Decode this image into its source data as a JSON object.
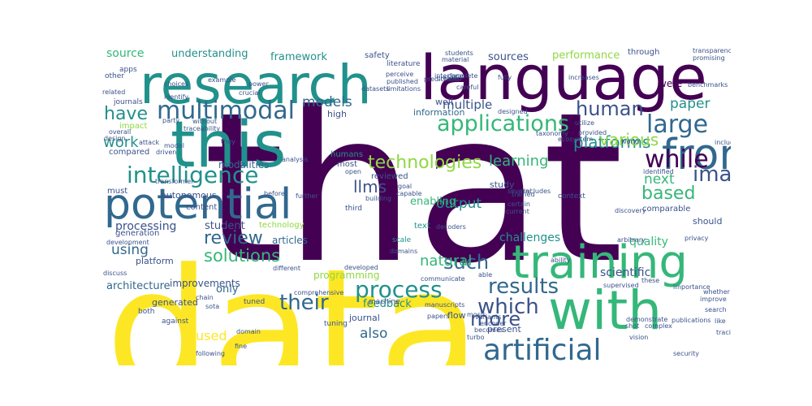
{
  "palette": {
    "dark_purple": "#440154",
    "indigo": "#3b528b",
    "slate_blue": "#31688e",
    "teal": "#21918c",
    "green": "#35b779",
    "lime": "#90d743",
    "yellow": "#fde725",
    "background": "#ffffff"
  },
  "words": [
    {
      "text": "that",
      "color": "#440154"
    },
    {
      "text": "data",
      "color": "#fde725"
    },
    {
      "text": "language",
      "color": "#440154"
    },
    {
      "text": "research",
      "color": "#21918c"
    },
    {
      "text": "this",
      "color": "#21918c"
    },
    {
      "text": "with",
      "color": "#35b779"
    },
    {
      "text": "training",
      "color": "#35b779"
    },
    {
      "text": "from",
      "color": "#31688e"
    },
    {
      "text": "potential",
      "color": "#31688e"
    },
    {
      "text": "artificial",
      "color": "#31688e"
    },
    {
      "text": "multimodal",
      "color": "#31688e"
    },
    {
      "text": "intelligence",
      "color": "#21918c"
    },
    {
      "text": "applications",
      "color": "#35b779"
    },
    {
      "text": "technologies",
      "color": "#90d743"
    },
    {
      "text": "large",
      "color": "#31688e"
    },
    {
      "text": "human",
      "color": "#3b528b"
    },
    {
      "text": "image",
      "color": "#3b528b"
    },
    {
      "text": "while",
      "color": "#440154"
    },
    {
      "text": "process",
      "color": "#21918c"
    },
    {
      "text": "results",
      "color": "#31688e"
    },
    {
      "text": "which",
      "color": "#3b528b"
    },
    {
      "text": "more",
      "color": "#3b528b"
    },
    {
      "text": "their",
      "color": "#31688e"
    },
    {
      "text": "such",
      "color": "#31688e"
    },
    {
      "text": "have",
      "color": "#21918c"
    },
    {
      "text": "review",
      "color": "#31688e"
    },
    {
      "text": "solutions",
      "color": "#35b779"
    },
    {
      "text": "platforms",
      "color": "#21918c"
    },
    {
      "text": "various",
      "color": "#90d743"
    },
    {
      "text": "based",
      "color": "#35b779"
    },
    {
      "text": "paper",
      "color": "#21918c"
    },
    {
      "text": "learning",
      "color": "#35b779"
    },
    {
      "text": "natural",
      "color": "#35b779"
    },
    {
      "text": "output",
      "color": "#21918c"
    },
    {
      "text": "models",
      "color": "#31688e"
    },
    {
      "text": "llms",
      "color": "#3b528b"
    },
    {
      "text": "next",
      "color": "#35b779"
    },
    {
      "text": "using",
      "color": "#31688e"
    },
    {
      "text": "work",
      "color": "#21918c"
    },
    {
      "text": "also",
      "color": "#31688e"
    },
    {
      "text": "used",
      "color": "#fde725"
    },
    {
      "text": "multiple",
      "color": "#3b528b"
    },
    {
      "text": "source",
      "color": "#35b779"
    },
    {
      "text": "framework",
      "color": "#21918c"
    },
    {
      "text": "understanding",
      "color": "#21918c"
    },
    {
      "text": "processing",
      "color": "#3b528b"
    },
    {
      "text": "modalities",
      "color": "#31688e"
    },
    {
      "text": "sources",
      "color": "#3b528b"
    },
    {
      "text": "performance",
      "color": "#90d743"
    },
    {
      "text": "challenges",
      "color": "#21918c"
    },
    {
      "text": "quality",
      "color": "#35b779"
    },
    {
      "text": "scientific",
      "color": "#3b528b"
    },
    {
      "text": "architecture",
      "color": "#31688e"
    },
    {
      "text": "programming",
      "color": "#90d743"
    },
    {
      "text": "enabling",
      "color": "#35b779"
    },
    {
      "text": "feedback",
      "color": "#21918c"
    },
    {
      "text": "articles",
      "color": "#31688e"
    },
    {
      "text": "student",
      "color": "#3b528b"
    },
    {
      "text": "platform",
      "color": "#3b528b"
    },
    {
      "text": "improvements",
      "color": "#3b528b"
    },
    {
      "text": "generated",
      "color": "#3b528b"
    },
    {
      "text": "only",
      "color": "#31688e"
    },
    {
      "text": "journal",
      "color": "#3b528b"
    },
    {
      "text": "present",
      "color": "#3b528b"
    },
    {
      "text": "flow",
      "color": "#3b528b"
    },
    {
      "text": "autonomous",
      "color": "#3b528b"
    },
    {
      "text": "technology",
      "color": "#90d743"
    },
    {
      "text": "content",
      "color": "#3b528b"
    },
    {
      "text": "generation",
      "color": "#3b528b"
    },
    {
      "text": "must",
      "color": "#3b528b"
    },
    {
      "text": "compared",
      "color": "#3b528b"
    },
    {
      "text": "impact",
      "color": "#90d743"
    },
    {
      "text": "high",
      "color": "#3b528b"
    },
    {
      "text": "humans",
      "color": "#21918c"
    },
    {
      "text": "information",
      "color": "#31688e"
    },
    {
      "text": "well",
      "color": "#3b528b"
    },
    {
      "text": "study",
      "color": "#3b528b"
    },
    {
      "text": "most",
      "color": "#3b528b"
    },
    {
      "text": "reviewed",
      "color": "#3b528b"
    },
    {
      "text": "comparable",
      "color": "#3b528b"
    },
    {
      "text": "should",
      "color": "#3b528b"
    },
    {
      "text": "were",
      "color": "#440154"
    },
    {
      "text": "through",
      "color": "#3b528b"
    },
    {
      "text": "safety",
      "color": "#3b528b"
    },
    {
      "text": "journals",
      "color": "#3b528b"
    },
    {
      "text": "apps",
      "color": "#3b528b"
    },
    {
      "text": "other",
      "color": "#3b528b"
    },
    {
      "text": "literature",
      "color": "#3b528b"
    },
    {
      "text": "text",
      "color": "#21918c"
    },
    {
      "text": "scale",
      "color": "#21918c"
    },
    {
      "text": "machine",
      "color": "#3b528b"
    },
    {
      "text": "third",
      "color": "#3b528b"
    },
    {
      "text": "open",
      "color": "#3b528b"
    },
    {
      "text": "context",
      "color": "#3b528b"
    },
    {
      "text": "both",
      "color": "#3b528b"
    },
    {
      "text": "against",
      "color": "#3b528b"
    },
    {
      "text": "tuning",
      "color": "#3b528b"
    },
    {
      "text": "tuned",
      "color": "#3b528b"
    },
    {
      "text": "before",
      "color": "#3b528b"
    },
    {
      "text": "decoders",
      "color": "#3b528b"
    },
    {
      "text": "students",
      "color": "#3b528b"
    },
    {
      "text": "material",
      "color": "#3b528b"
    },
    {
      "text": "power",
      "color": "#3b528b"
    },
    {
      "text": "crucial",
      "color": "#3b528b"
    },
    {
      "text": "example",
      "color": "#3b528b"
    },
    {
      "text": "choices",
      "color": "#3b528b"
    },
    {
      "text": "related",
      "color": "#3b528b"
    },
    {
      "text": "identify",
      "color": "#3b528b"
    },
    {
      "text": "party",
      "color": "#3b528b"
    },
    {
      "text": "without",
      "color": "#3b528b"
    },
    {
      "text": "traceability",
      "color": "#3b528b"
    },
    {
      "text": "overall",
      "color": "#3b528b"
    },
    {
      "text": "attack",
      "color": "#3b528b"
    },
    {
      "text": "model",
      "color": "#3b528b"
    },
    {
      "text": "design",
      "color": "#3b528b"
    },
    {
      "text": "driven",
      "color": "#3b528b"
    },
    {
      "text": "transformer",
      "color": "#3b528b"
    },
    {
      "text": "they",
      "color": "#3b528b"
    },
    {
      "text": "analysis",
      "color": "#3b528b"
    },
    {
      "text": "goal",
      "color": "#3b528b"
    },
    {
      "text": "capable",
      "color": "#3b528b"
    },
    {
      "text": "building",
      "color": "#3b528b"
    },
    {
      "text": "created",
      "color": "#3b528b"
    },
    {
      "text": "careful",
      "color": "#3b528b"
    },
    {
      "text": "perceive",
      "color": "#3b528b"
    },
    {
      "text": "published",
      "color": "#3b528b"
    },
    {
      "text": "limitations",
      "color": "#3b528b"
    },
    {
      "text": "datasets",
      "color": "#3b528b"
    },
    {
      "text": "predictions",
      "color": "#3b528b"
    },
    {
      "text": "complete",
      "color": "#3b528b"
    },
    {
      "text": "interface",
      "color": "#3b528b"
    },
    {
      "text": "fully",
      "color": "#3b528b"
    },
    {
      "text": "designed",
      "color": "#3b528b"
    },
    {
      "text": "provided",
      "color": "#3b528b"
    },
    {
      "text": "utilize",
      "color": "#3b528b"
    },
    {
      "text": "taxonomy",
      "color": "#3b528b"
    },
    {
      "text": "ecosystem",
      "color": "#3b528b"
    },
    {
      "text": "several",
      "color": "#3b528b"
    },
    {
      "text": "includes",
      "color": "#3b528b"
    },
    {
      "text": "increases",
      "color": "#3b528b"
    },
    {
      "text": "world",
      "color": "#3b528b"
    },
    {
      "text": "benchmarks",
      "color": "#3b528b"
    },
    {
      "text": "transparency",
      "color": "#3b528b"
    },
    {
      "text": "promising",
      "color": "#3b528b"
    },
    {
      "text": "identified",
      "color": "#3b528b"
    },
    {
      "text": "including",
      "color": "#3b528b"
    },
    {
      "text": "trained",
      "color": "#3b528b"
    },
    {
      "text": "certain",
      "color": "#3b528b"
    },
    {
      "text": "current",
      "color": "#3b528b"
    },
    {
      "text": "discovery",
      "color": "#3b528b"
    },
    {
      "text": "arbitrary",
      "color": "#3b528b"
    },
    {
      "text": "privacy",
      "color": "#3b528b"
    },
    {
      "text": "importance",
      "color": "#3b528b"
    },
    {
      "text": "whether",
      "color": "#3b528b"
    },
    {
      "text": "improve",
      "color": "#3b528b"
    },
    {
      "text": "search",
      "color": "#3b528b"
    },
    {
      "text": "tracing",
      "color": "#3b528b"
    },
    {
      "text": "like",
      "color": "#3b528b"
    },
    {
      "text": "security",
      "color": "#3b528b"
    },
    {
      "text": "publications",
      "color": "#3b528b"
    },
    {
      "text": "demonstrate",
      "color": "#3b528b"
    },
    {
      "text": "shot",
      "color": "#3b528b"
    },
    {
      "text": "complex",
      "color": "#3b528b"
    },
    {
      "text": "vision",
      "color": "#3b528b"
    },
    {
      "text": "supervised",
      "color": "#3b528b"
    },
    {
      "text": "these",
      "color": "#3b528b"
    },
    {
      "text": "ability",
      "color": "#3b528b"
    },
    {
      "text": "able",
      "color": "#3b528b"
    },
    {
      "text": "variants",
      "color": "#3b528b"
    },
    {
      "text": "mosis",
      "color": "#3b528b"
    },
    {
      "text": "encoder",
      "color": "#3b528b"
    },
    {
      "text": "becomes",
      "color": "#3b528b"
    },
    {
      "text": "turbo",
      "color": "#3b528b"
    },
    {
      "text": "manuscripts",
      "color": "#3b528b"
    },
    {
      "text": "papers",
      "color": "#3b528b"
    },
    {
      "text": "communicate",
      "color": "#3b528b"
    },
    {
      "text": "domains",
      "color": "#3b528b"
    },
    {
      "text": "developed",
      "color": "#3b528b"
    },
    {
      "text": "comprehensive",
      "color": "#3b528b"
    },
    {
      "text": "different",
      "color": "#3b528b"
    },
    {
      "text": "development",
      "color": "#3b528b"
    },
    {
      "text": "discuss",
      "color": "#3b528b"
    },
    {
      "text": "chain",
      "color": "#3b528b"
    },
    {
      "text": "sota",
      "color": "#3b528b"
    },
    {
      "text": "domain",
      "color": "#3b528b"
    },
    {
      "text": "fine",
      "color": "#3b528b"
    },
    {
      "text": "following",
      "color": "#3b528b"
    },
    {
      "text": "further",
      "color": "#3b528b"
    },
    {
      "text": "show",
      "color": "#3b528b"
    }
  ]
}
